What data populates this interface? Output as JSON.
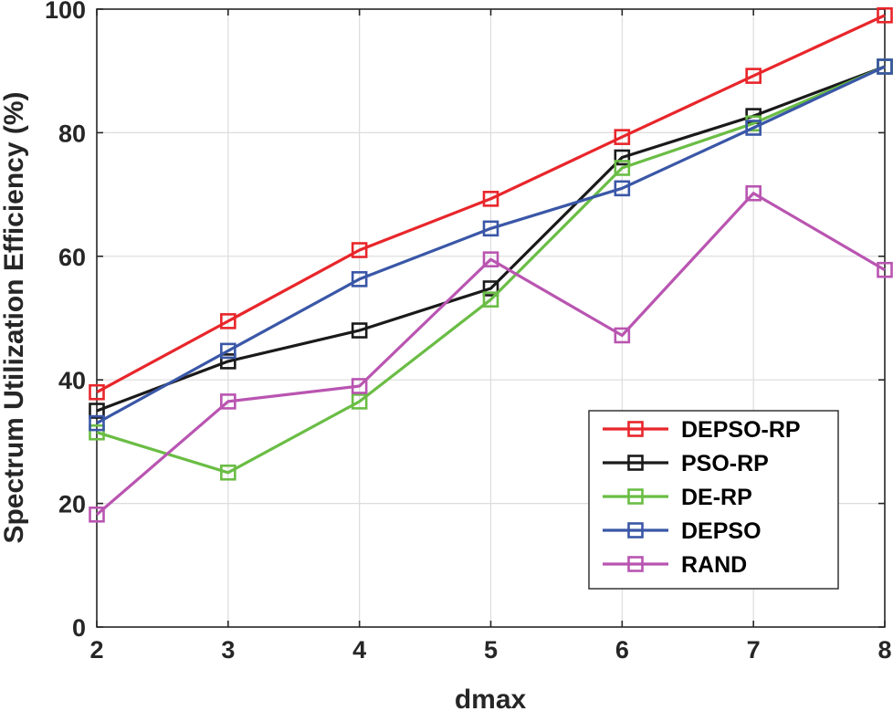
{
  "chart_data": {
    "type": "line",
    "title": "",
    "xlabel": "dmax",
    "ylabel": "Spectrum Utilization Efficiency (%)",
    "x": [
      2,
      3,
      4,
      5,
      6,
      7,
      8
    ],
    "xlim": [
      2,
      8
    ],
    "ylim": [
      0,
      100
    ],
    "xticks": [
      "2",
      "3",
      "4",
      "5",
      "6",
      "7",
      "8"
    ],
    "yticks": [
      "0",
      "20",
      "40",
      "60",
      "80",
      "100"
    ],
    "grid": true,
    "legend_position": "bottom-right",
    "marker": "square",
    "series": [
      {
        "name": "DEPSO-RP",
        "color": "#e8262b",
        "values": [
          38.0,
          49.5,
          61.0,
          69.3,
          79.3,
          89.2,
          99.0
        ]
      },
      {
        "name": "PSO-RP",
        "color": "#1a1a1a",
        "values": [
          35.0,
          43.0,
          48.0,
          54.8,
          76.0,
          82.7,
          90.7
        ]
      },
      {
        "name": "DE-RP",
        "color": "#6abd45",
        "values": [
          31.5,
          25.0,
          36.5,
          53.0,
          74.3,
          81.5,
          90.7
        ]
      },
      {
        "name": "DEPSO",
        "color": "#3a57a7",
        "values": [
          33.0,
          44.7,
          56.3,
          64.5,
          71.0,
          80.8,
          90.7
        ]
      },
      {
        "name": "RAND",
        "color": "#b955b1",
        "values": [
          18.2,
          36.5,
          39.0,
          59.5,
          47.2,
          70.2,
          57.8
        ]
      }
    ]
  }
}
